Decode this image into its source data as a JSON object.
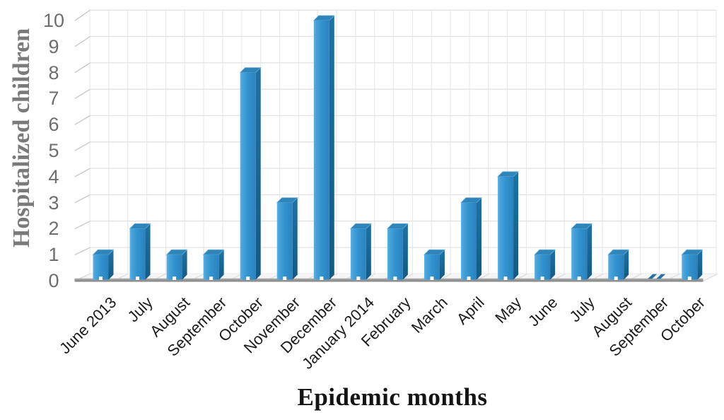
{
  "chart_data": {
    "type": "bar",
    "style": "3d-column",
    "title": "",
    "xlabel": "Epidemic months",
    "ylabel": "Hospitalized children",
    "categories": [
      "June 2013",
      "July",
      "August",
      "September",
      "October",
      "November",
      "December",
      "January 2014",
      "February",
      "March",
      "April",
      "May",
      "June",
      "July",
      "August",
      "September",
      "October"
    ],
    "values": [
      1,
      2,
      1,
      1,
      8,
      3,
      10,
      2,
      2,
      1,
      3,
      4,
      1,
      2,
      1,
      0,
      1
    ],
    "yticks": [
      0,
      1,
      2,
      3,
      4,
      5,
      6,
      7,
      8,
      9,
      10
    ],
    "ylim": [
      0,
      10
    ],
    "grid": true,
    "legend": false,
    "colors": {
      "bar_front_light": "#5fb0e1",
      "bar_front": "#3292cf",
      "bar_front_dark": "#2a82bd",
      "bar_side": "#1f71a4",
      "bar_side_dark": "#145a83",
      "bar_top": "#2f84b9",
      "bar_top_edge": "#63acd8",
      "zero_marker": "#26709f",
      "gridline_h": "#e2e2e2",
      "gridline_v": "#e9e9e9",
      "tick_diagonal": "#c9c9c9",
      "floor_fill": "#f6f6f6",
      "floor_line": "#dedede",
      "baseline": "#9b9b9b",
      "baseline_dark": "#808080",
      "ytick_text": "#6e6e6e",
      "category_text": "#1c1c1c",
      "ylabel_text": "#7a7a7a",
      "xlabel_text": "#141414"
    }
  }
}
